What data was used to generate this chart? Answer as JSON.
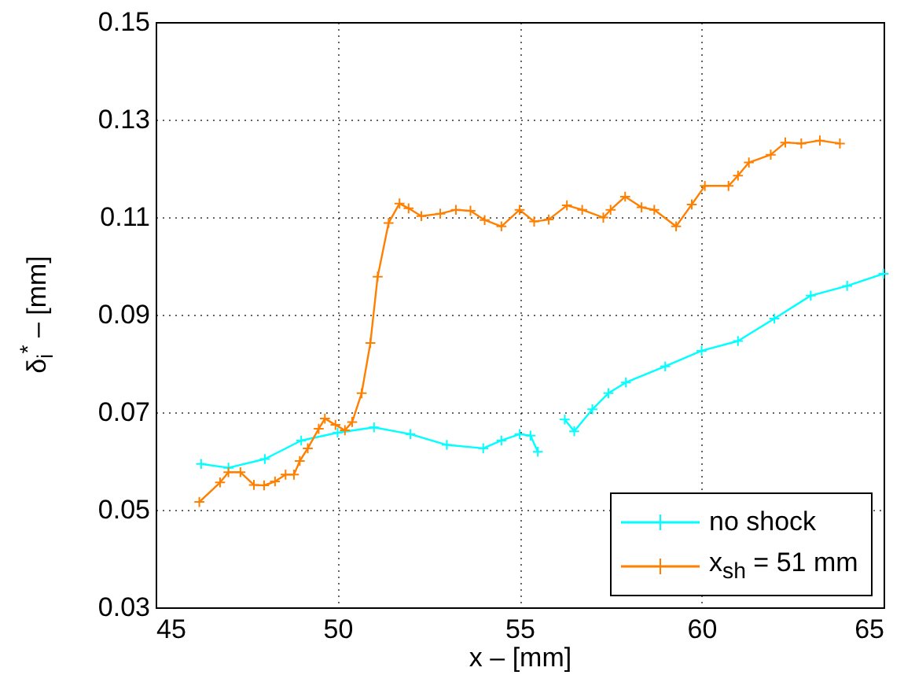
{
  "chart_data": {
    "type": "line",
    "xlabel": "x – [mm]",
    "ylabel": "δ$_{i}$$^{*}$ – [mm]",
    "xlim": [
      45,
      65
    ],
    "xticks": [
      45,
      50,
      55,
      60,
      65
    ],
    "ylim": [
      0.03,
      0.15
    ],
    "yticks": [
      0.03,
      0.05,
      0.07,
      0.09,
      0.11,
      0.13,
      0.15
    ],
    "grid": true,
    "legend": "bottom right",
    "marker": "cross",
    "line_style": "solid",
    "series": [
      {
        "name": "no shock",
        "color": "#00ffff",
        "x": [
          46.25,
          47.0,
          48.0,
          49.0,
          50.0,
          51.0,
          52.0,
          53.0,
          54.0,
          54.5,
          55.0,
          55.3,
          55.5,
          55.9,
          56.24,
          56.5,
          57.0,
          57.44,
          57.92,
          59.0,
          60.0,
          61.0,
          62.0,
          63.0,
          64.0,
          65.0
        ],
        "values": [
          0.0594,
          0.0586,
          0.0604,
          0.0642,
          0.0658,
          0.0669,
          0.0655,
          0.0633,
          0.0626,
          0.0642,
          0.0655,
          0.0652,
          0.0619,
          null,
          0.0685,
          0.0661,
          0.0706,
          0.0739,
          0.0761,
          0.0794,
          0.0826,
          0.0846,
          0.0892,
          0.0939,
          0.0959,
          0.0984
        ]
      },
      {
        "name": "x$_{sh}$ = 51 mm",
        "color": "#ff8000",
        "x": [
          46.2,
          46.77,
          47.0,
          47.33,
          47.7,
          47.98,
          48.28,
          48.57,
          48.8,
          48.96,
          49.18,
          49.48,
          49.65,
          49.94,
          50.2,
          50.4,
          50.66,
          50.9,
          51.1,
          51.4,
          51.7,
          51.95,
          52.3,
          52.82,
          53.25,
          53.65,
          54.04,
          54.5,
          55.0,
          55.4,
          55.8,
          56.3,
          56.72,
          57.3,
          57.5,
          57.9,
          58.35,
          58.7,
          59.3,
          59.73,
          60.09,
          60.74,
          61.0,
          61.3,
          61.9,
          62.3,
          62.74,
          63.25,
          63.8
        ],
        "values": [
          0.0516,
          0.0556,
          0.0577,
          0.0577,
          0.0551,
          0.055,
          0.0558,
          0.0572,
          0.0572,
          0.06,
          0.0626,
          0.0666,
          0.0687,
          0.0674,
          0.0663,
          0.068,
          0.0739,
          0.0842,
          0.0978,
          0.1088,
          0.1128,
          0.1118,
          0.1102,
          0.1107,
          0.1115,
          0.1113,
          0.1094,
          0.1081,
          0.1115,
          0.1091,
          0.1095,
          0.1124,
          0.1115,
          0.1099,
          0.1115,
          0.1142,
          0.112,
          0.1115,
          0.1081,
          0.1126,
          0.1164,
          0.1164,
          0.1185,
          0.1212,
          0.1228,
          0.1253,
          0.1251,
          0.1257,
          0.1251
        ]
      }
    ]
  }
}
